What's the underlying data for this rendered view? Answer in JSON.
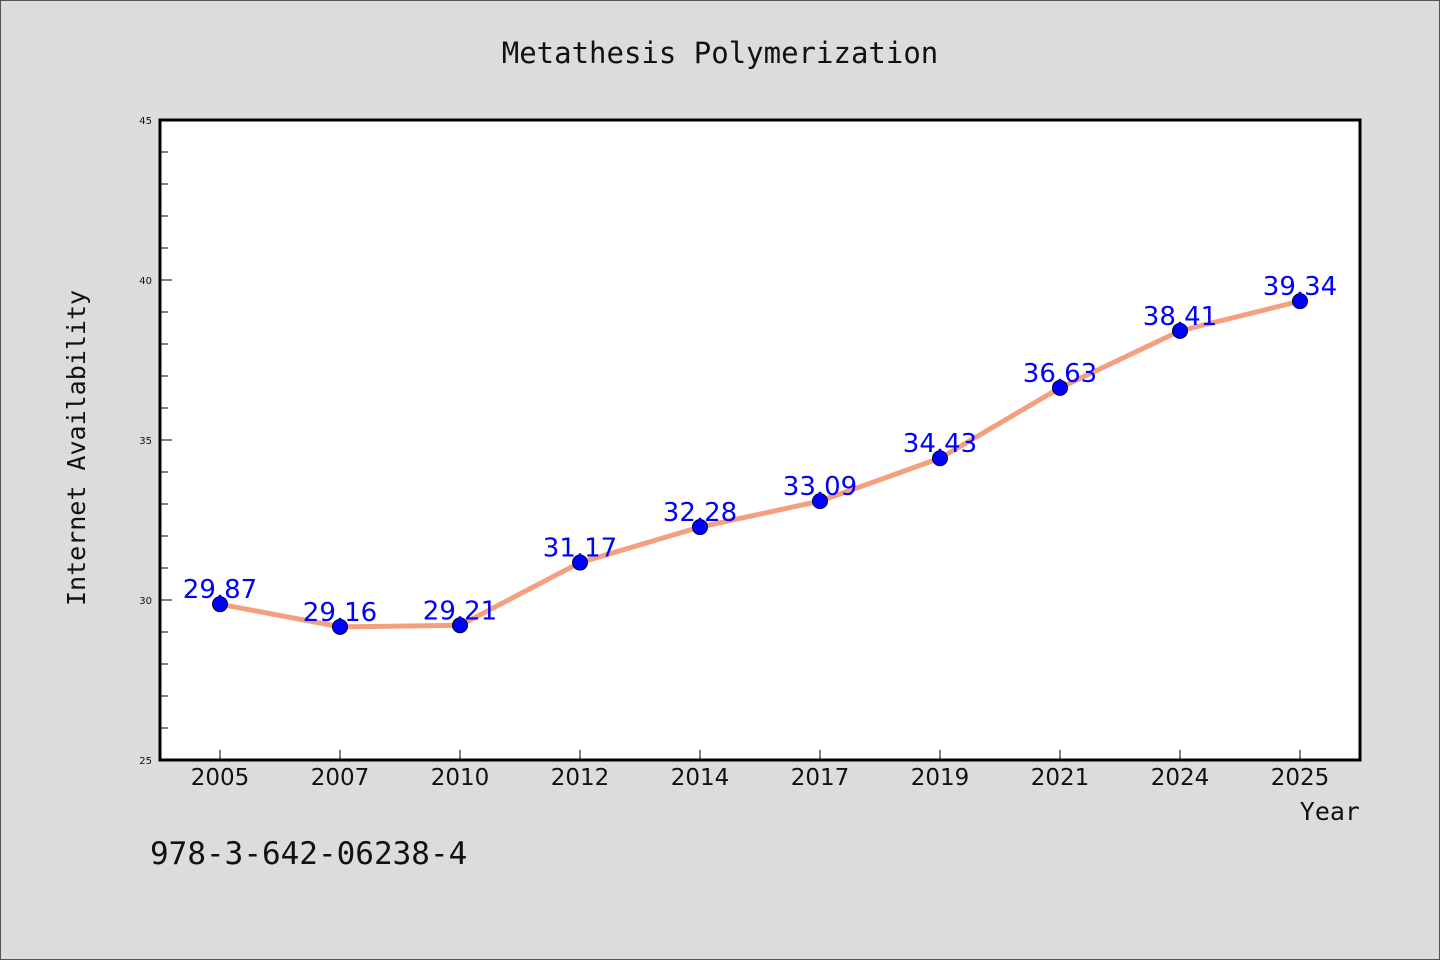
{
  "chart_data": {
    "type": "line",
    "title": "Metathesis Polymerization",
    "xlabel": "Year",
    "ylabel": "Internet Availability",
    "categories": [
      "2005",
      "2007",
      "2010",
      "2012",
      "2014",
      "2017",
      "2019",
      "2021",
      "2024",
      "2025"
    ],
    "series": [
      {
        "values": [
          29.87,
          29.16,
          29.21,
          31.17,
          32.28,
          33.09,
          34.43,
          36.63,
          38.41,
          39.34
        ],
        "labels": [
          "29.87",
          "29.16",
          "29.21",
          "31.17",
          "32.28",
          "33.09",
          "34.43",
          "36.63",
          "38.41",
          "39.34"
        ],
        "line_color": "#f4a07f",
        "marker_color": "#0000ff",
        "label_color": "#0000ff"
      }
    ],
    "ylim": [
      25,
      45
    ],
    "y_ticks": [
      "25",
      "30",
      "35",
      "40",
      "45"
    ],
    "grid": false,
    "annotation": "978-3-642-06238-4"
  }
}
